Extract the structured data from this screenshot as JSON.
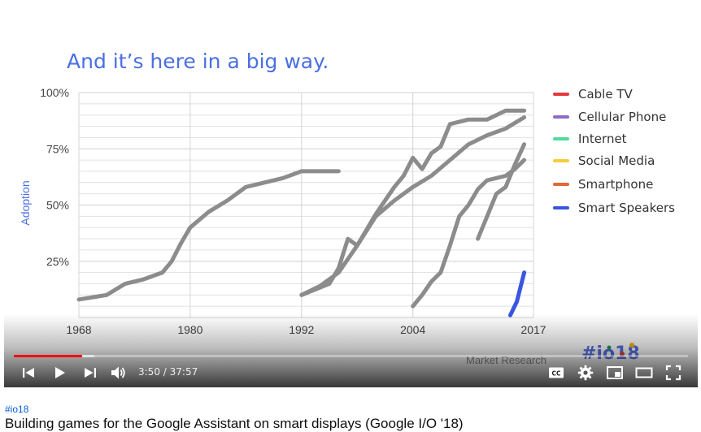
{
  "slide": {
    "title": "And it’s here in a big way.",
    "ylabel": "Adoption",
    "watermark_hashtag": "#io18",
    "source": "Market Research"
  },
  "chart_data": {
    "type": "line",
    "title": "And it’s here in a big way.",
    "ylabel": "Adoption",
    "xlabel": "",
    "x_ticks": [
      "1968",
      "1980",
      "1992",
      "2004",
      "2017"
    ],
    "y_ticks": [
      "100%",
      "75%",
      "50%",
      "25%"
    ],
    "xlim": [
      1968,
      2017
    ],
    "ylim": [
      0,
      100
    ],
    "grid": true,
    "legend_position": "right",
    "legend": [
      {
        "name": "Cable TV",
        "color": "#e23b3b"
      },
      {
        "name": "Cellular Phone",
        "color": "#8e6cc7"
      },
      {
        "name": "Internet",
        "color": "#4fdc9c"
      },
      {
        "name": "Social Media",
        "color": "#f5cd3a"
      },
      {
        "name": "Smartphone",
        "color": "#e0683a"
      },
      {
        "name": "Smart Speakers",
        "color": "#3a56e0"
      }
    ],
    "series": [
      {
        "name": "Cable TV",
        "color": "#8c8c8c",
        "x": [
          1968,
          1971,
          1973,
          1975,
          1977,
          1978,
          1979,
          1980,
          1982,
          1984,
          1986,
          1988,
          1990,
          1992,
          1994,
          1996
        ],
        "y": [
          8,
          10,
          15,
          17,
          20,
          25,
          33,
          40,
          47,
          52,
          58,
          60,
          62,
          65,
          65,
          65
        ]
      },
      {
        "name": "Cellular Phone",
        "color": "#8c8c8c",
        "x": [
          1992,
          1994,
          1996,
          1998,
          2000,
          2002,
          2004,
          2006,
          2008,
          2010,
          2012,
          2014,
          2016
        ],
        "y": [
          10,
          14,
          20,
          32,
          45,
          52,
          58,
          63,
          70,
          77,
          81,
          84,
          89
        ]
      },
      {
        "name": "Internet",
        "color": "#8c8c8c",
        "x": [
          1992,
          1995,
          1996,
          1997,
          1998,
          2000,
          2002,
          2003,
          2004,
          2005,
          2006,
          2007,
          2008,
          2010,
          2012,
          2014,
          2016
        ],
        "y": [
          10,
          15,
          22,
          35,
          32,
          46,
          58,
          63,
          71,
          66,
          73,
          76,
          86,
          88,
          88,
          92,
          92
        ]
      },
      {
        "name": "Social Media",
        "color": "#8c8c8c",
        "x": [
          2004,
          2005,
          2006,
          2007,
          2008,
          2009,
          2010,
          2011,
          2012,
          2013,
          2014,
          2015,
          2016
        ],
        "y": [
          5,
          10,
          16,
          20,
          32,
          45,
          50,
          57,
          61,
          62,
          63,
          66,
          70
        ]
      },
      {
        "name": "Smartphone",
        "color": "#8c8c8c",
        "x": [
          2011,
          2012,
          2013,
          2014,
          2015,
          2016
        ],
        "y": [
          35,
          45,
          55,
          58,
          68,
          77
        ]
      },
      {
        "name": "Smart Speakers",
        "color": "#3a56e0",
        "x": [
          2014.5,
          2015.2,
          2016
        ],
        "y": [
          1,
          7,
          20
        ]
      }
    ]
  },
  "player": {
    "current_time": "3:50",
    "separator": " / ",
    "duration": "37:57",
    "played_fraction": 0.101,
    "buffered_fraction": 0.12
  },
  "icons": {
    "previous": "skip-previous-icon",
    "play": "play-icon",
    "next": "skip-next-icon",
    "volume": "volume-icon",
    "captions": "closed-captions-icon",
    "settings": "gear-icon",
    "miniplayer": "miniplayer-icon",
    "theater": "theater-mode-icon",
    "fullscreen": "fullscreen-icon"
  },
  "info": {
    "hashtag": "#io18",
    "title": "Building games for the Google Assistant on smart displays (Google I/O '18)"
  }
}
